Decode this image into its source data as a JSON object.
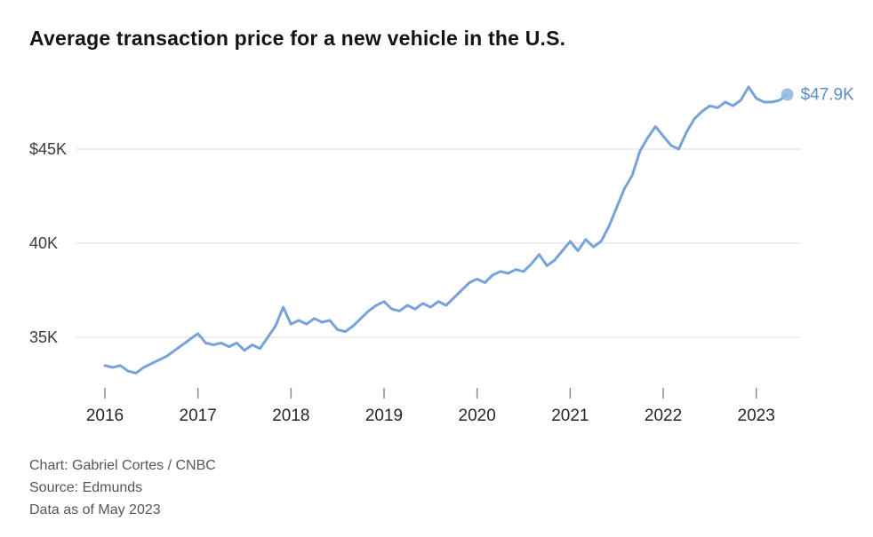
{
  "page": {
    "title": "Average transaction price for a new vehicle in the U.S.",
    "footer": {
      "credit": "Chart: Gabriel Cortes / CNBC",
      "source": "Source: Edmunds",
      "as_of": "Data as of May 2023"
    }
  },
  "chart_data": {
    "type": "line",
    "title": "Average transaction price for a new vehicle in the U.S.",
    "unit": "USD thousands",
    "x_start": "2016-01",
    "x_end": "2023-05",
    "x_tick_labels": [
      "2016",
      "2017",
      "2018",
      "2019",
      "2020",
      "2021",
      "2022",
      "2023"
    ],
    "x_months_per_tick": 12,
    "y_ticks": [
      {
        "value": 45,
        "label": "$45K"
      },
      {
        "value": 40,
        "label": "40K"
      },
      {
        "value": 35,
        "label": "35K"
      }
    ],
    "ylim": [
      32.5,
      49
    ],
    "grid": "horizontal",
    "legend": "none",
    "series": [
      {
        "name": "Average transaction price",
        "values": [
          33.5,
          33.4,
          33.5,
          33.2,
          33.1,
          33.4,
          33.6,
          33.8,
          34.0,
          34.3,
          34.6,
          34.9,
          35.2,
          34.7,
          34.6,
          34.7,
          34.5,
          34.7,
          34.3,
          34.6,
          34.4,
          35.0,
          35.6,
          36.6,
          35.7,
          35.9,
          35.7,
          36.0,
          35.8,
          35.9,
          35.4,
          35.3,
          35.6,
          36.0,
          36.4,
          36.7,
          36.9,
          36.5,
          36.4,
          36.7,
          36.5,
          36.8,
          36.6,
          36.9,
          36.7,
          37.1,
          37.5,
          37.9,
          38.1,
          37.9,
          38.3,
          38.5,
          38.4,
          38.6,
          38.5,
          38.9,
          39.4,
          38.8,
          39.1,
          39.6,
          40.1,
          39.6,
          40.2,
          39.8,
          40.1,
          40.9,
          41.9,
          42.9,
          43.6,
          44.9,
          45.6,
          46.2,
          45.7,
          45.2,
          45.0,
          45.9,
          46.6,
          47.0,
          47.3,
          47.2,
          47.5,
          47.3,
          47.6,
          48.3,
          47.7,
          47.5,
          47.5,
          47.6,
          47.9
        ]
      }
    ],
    "end_annotation": {
      "label": "$47.9K",
      "value": 47.9
    },
    "colors": {
      "line": "#76a3d8",
      "marker": "#92b9e4",
      "annotation": "#5b8dc9",
      "grid": "#dcdcdc",
      "tick": "#8c8c8c",
      "x_text": "#262626",
      "y_text": "#3a3a3a"
    }
  }
}
